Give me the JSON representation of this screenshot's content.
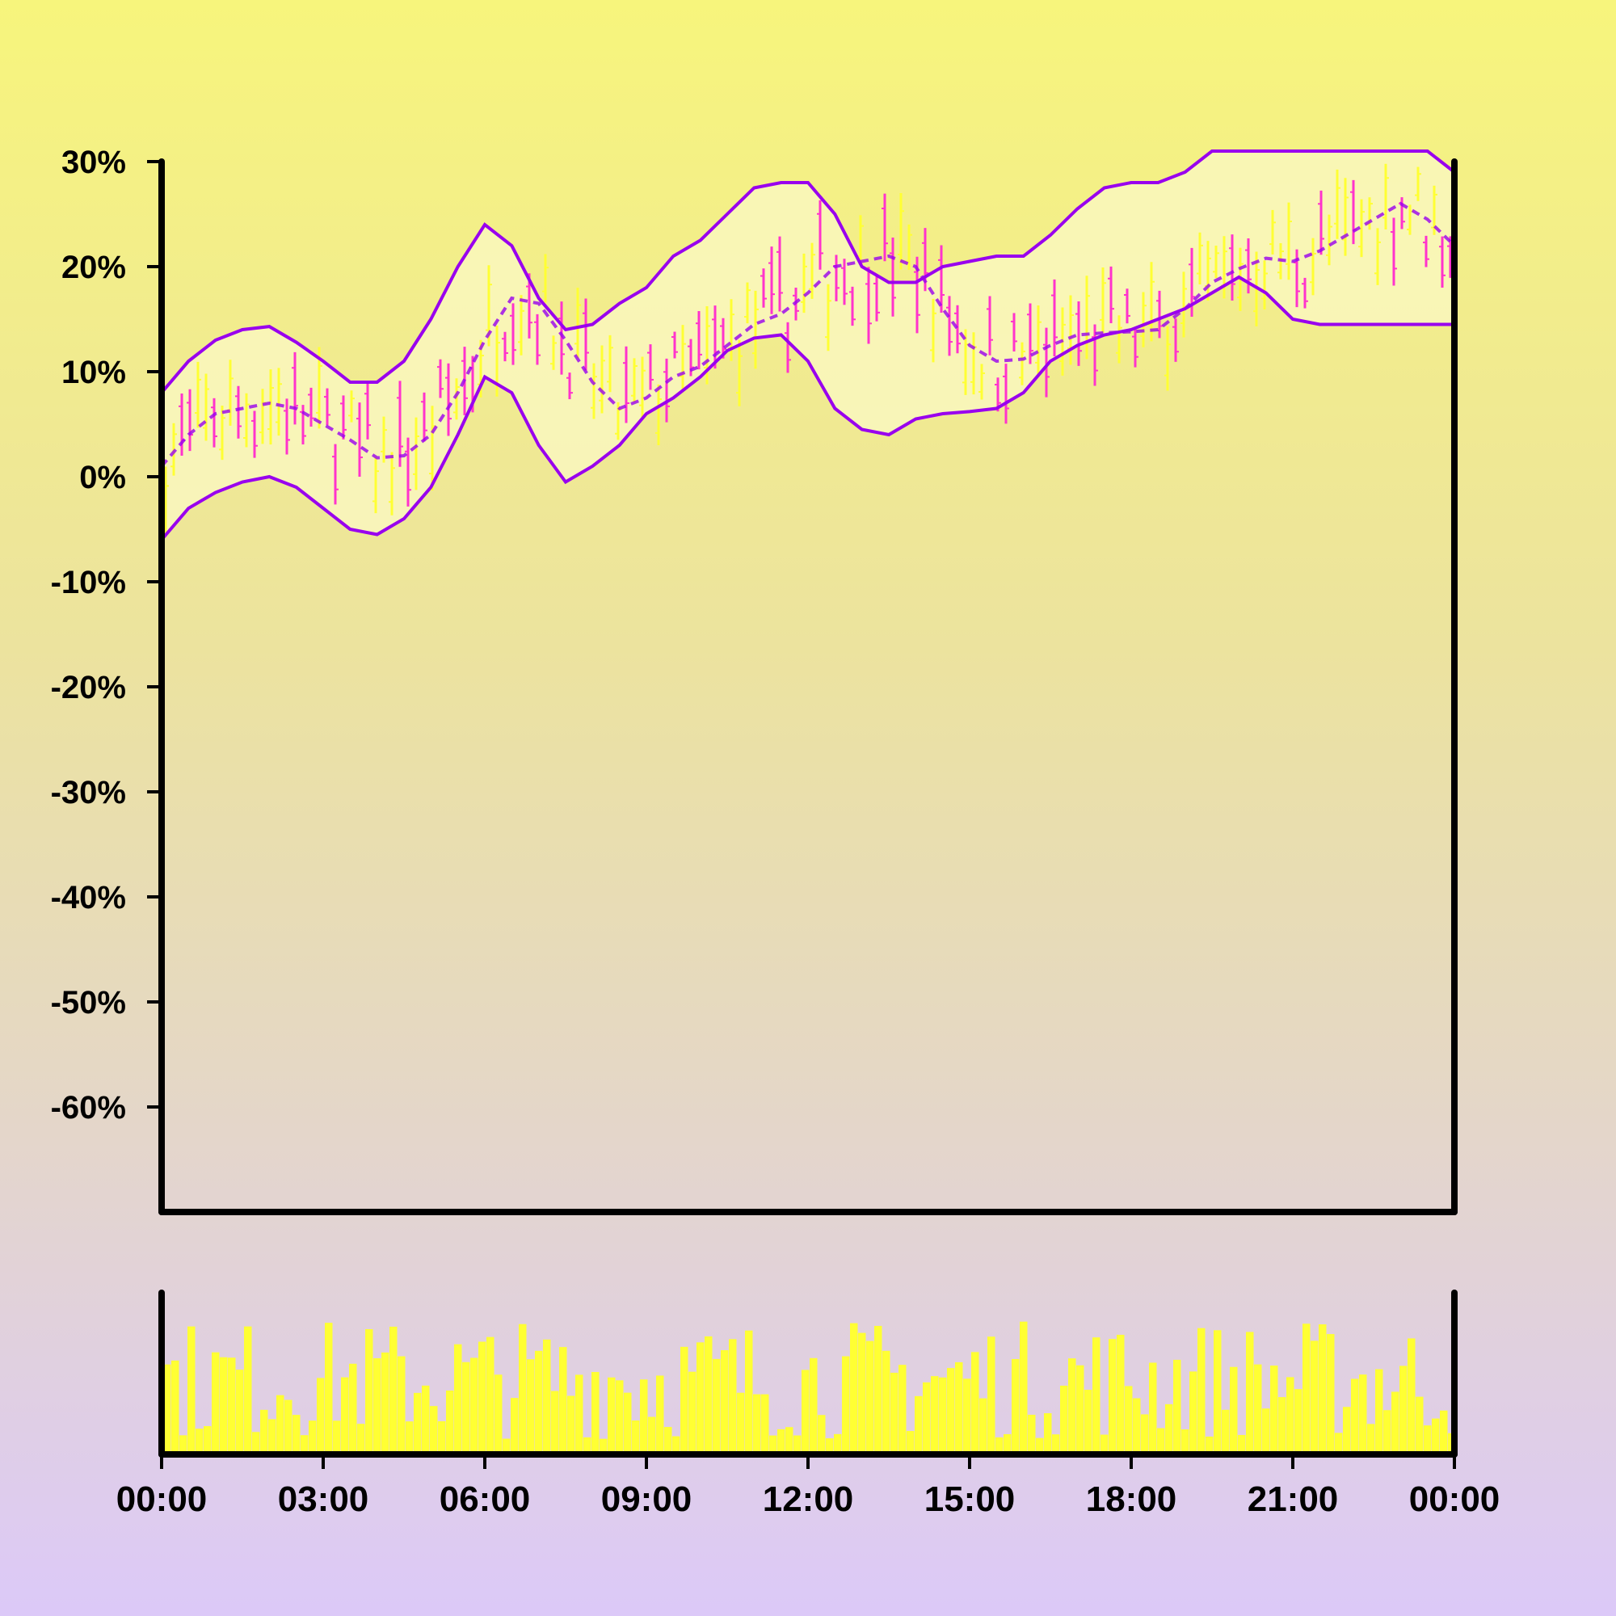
{
  "chart_data": {
    "type": "candlestick",
    "subtype": "ohlc-with-bollinger-bands-and-volume",
    "title": "",
    "xlabel": "",
    "ylabel": "",
    "ylim": [
      -70,
      30
    ],
    "y_ticks": [
      "30%",
      "20%",
      "10%",
      "0%",
      "-10%",
      "-20%",
      "-30%",
      "-40%",
      "-50%",
      "-60%"
    ],
    "y_tick_values": [
      30,
      20,
      10,
      0,
      -10,
      -20,
      -30,
      -40,
      -50,
      -60
    ],
    "x_ticks": [
      "00:00",
      "03:00",
      "06:00",
      "09:00",
      "12:00",
      "15:00",
      "18:00",
      "21:00",
      "00:00"
    ],
    "x_range_hours": [
      0,
      24
    ],
    "grid": false,
    "colors": {
      "up": "#ffff33",
      "down": "#ff33cc",
      "band": "#9900ee",
      "band_fill": "#fbf8c4",
      "volume": "#ffff33",
      "axis": "#000000"
    },
    "bands": {
      "hours": [
        0,
        0.5,
        1,
        1.5,
        2,
        2.5,
        3,
        3.5,
        4,
        4.5,
        5,
        5.5,
        6,
        6.5,
        7,
        7.5,
        8,
        8.5,
        9,
        9.5,
        10,
        10.5,
        11,
        11.5,
        12,
        12.5,
        13,
        13.5,
        14,
        14.5,
        15,
        15.5,
        16,
        16.5,
        17,
        17.5,
        18,
        18.5,
        19,
        19.5,
        20,
        20.5,
        21,
        21.5,
        22,
        22.5,
        23,
        23.5,
        24
      ],
      "middle": [
        1,
        4,
        6,
        6.5,
        7,
        6.5,
        5,
        3.5,
        1.8,
        2,
        4,
        8,
        13,
        17,
        16.5,
        13,
        9,
        6.5,
        7.5,
        9.5,
        10.5,
        12.5,
        14.5,
        15.5,
        17.5,
        20,
        20.5,
        21,
        20,
        16,
        12.5,
        11,
        11.2,
        12.5,
        13.5,
        13.7,
        13.8,
        14,
        16,
        18.5,
        19.8,
        20.8,
        20.5,
        21.5,
        23,
        24.5,
        26,
        24.5,
        22
      ],
      "upper": [
        8,
        11,
        13,
        14,
        14.3,
        12.8,
        11,
        9,
        9,
        11,
        15,
        20,
        24,
        22,
        17,
        14,
        14.5,
        16.5,
        18,
        21,
        22.5,
        25,
        27.5,
        28,
        28,
        25,
        20,
        18.5,
        18.5,
        20,
        20.5,
        21,
        21,
        23,
        25.5,
        27.5,
        28,
        28,
        29,
        31,
        31,
        31,
        31,
        31,
        31,
        31,
        31,
        31,
        29
      ],
      "lower": [
        -6,
        -3,
        -1.5,
        -0.5,
        0,
        -1,
        -3,
        -5,
        -5.5,
        -4,
        -1,
        4,
        9.5,
        8,
        3,
        -0.5,
        1,
        3,
        6,
        7.5,
        9.5,
        12,
        13.2,
        13.5,
        11,
        6.5,
        4.5,
        4,
        5.5,
        6,
        6.2,
        6.5,
        8,
        11,
        12.5,
        13.5,
        14,
        15,
        16,
        17.5,
        19,
        17.5,
        15,
        14.5,
        14.5,
        14.5,
        14.5,
        14.5,
        14.5
      ]
    },
    "candles": {
      "count": 160,
      "down_fraction": 0.5
    },
    "volume": {
      "count": 160
    }
  }
}
